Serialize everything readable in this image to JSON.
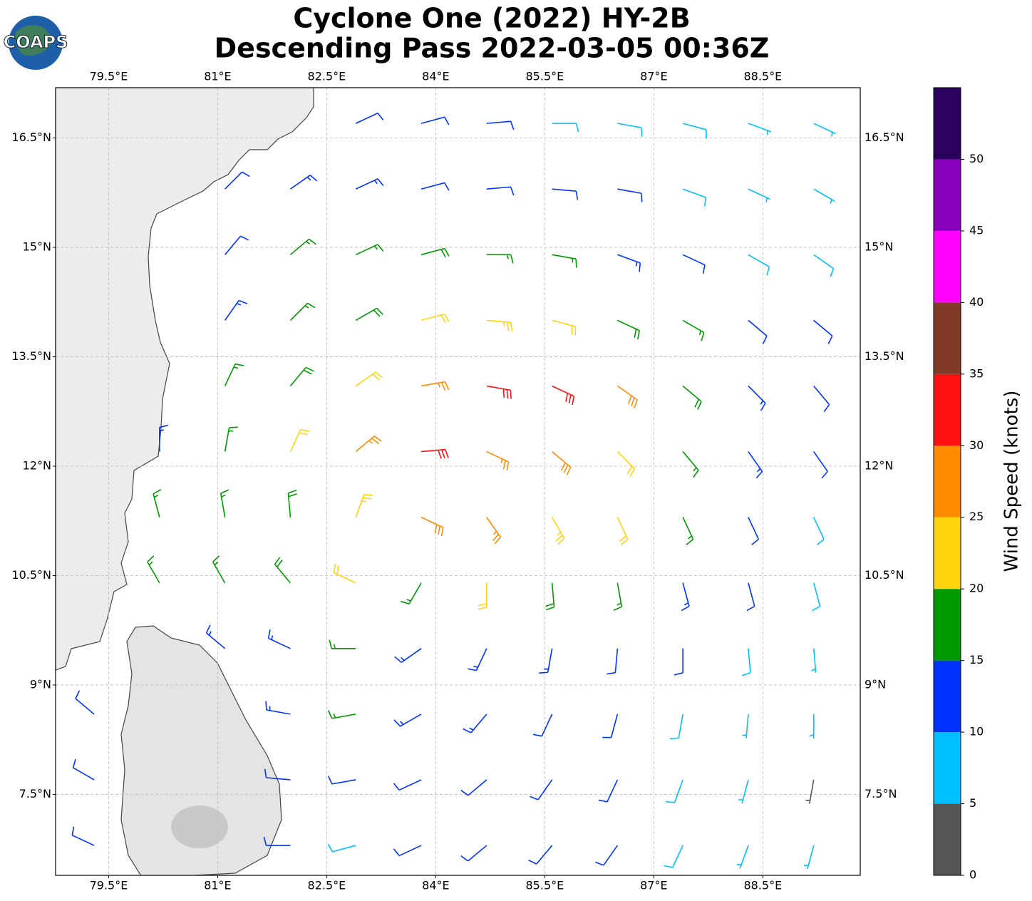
{
  "logo": "COAPS",
  "chart_data": {
    "type": "barbs",
    "title": "Cyclone One (2022) HY-2B",
    "subtitle": "Descending Pass 2022-03-05 00:36Z",
    "xlim": [
      78.77,
      89.84
    ],
    "ylim": [
      6.39,
      17.19
    ],
    "xticks": [
      {
        "value": 79.5,
        "label": "79.5°E"
      },
      {
        "value": 81,
        "label": "81°E"
      },
      {
        "value": 82.5,
        "label": "82.5°E"
      },
      {
        "value": 84,
        "label": "84°E"
      },
      {
        "value": 85.5,
        "label": "85.5°E"
      },
      {
        "value": 87,
        "label": "87°E"
      },
      {
        "value": 88.5,
        "label": "88.5°E"
      }
    ],
    "yticks": [
      {
        "value": 16.5,
        "label": "16.5°N"
      },
      {
        "value": 15,
        "label": "15°N"
      },
      {
        "value": 13.5,
        "label": "13.5°N"
      },
      {
        "value": 12,
        "label": "12°N"
      },
      {
        "value": 10.5,
        "label": "10.5°N"
      },
      {
        "value": 9,
        "label": "9°N"
      },
      {
        "value": 7.5,
        "label": "7.5°N"
      }
    ],
    "grid": true,
    "lons": [
      79.3,
      80.2,
      81.1,
      82.0,
      82.9,
      83.8,
      84.7,
      85.6,
      86.5,
      87.4,
      88.3,
      89.2
    ],
    "lats": [
      16.7,
      15.8,
      14.9,
      14.0,
      13.1,
      12.2,
      11.3,
      10.4,
      9.5,
      8.6,
      7.7,
      6.8
    ],
    "speed": [
      [
        null,
        null,
        null,
        null,
        12,
        12,
        12,
        8,
        8,
        8,
        7,
        7
      ],
      [
        null,
        null,
        11,
        13,
        13,
        12,
        12,
        12,
        11,
        8,
        7,
        7
      ],
      [
        null,
        null,
        12,
        15,
        17,
        19,
        17,
        16,
        14,
        12,
        9,
        8
      ],
      [
        null,
        null,
        13,
        16,
        19,
        22,
        23,
        22,
        19,
        15,
        12,
        10
      ],
      [
        null,
        null,
        16,
        18,
        22,
        26,
        30,
        31,
        28,
        18,
        14,
        12
      ],
      [
        null,
        13,
        17,
        20,
        26,
        31,
        27,
        28,
        22,
        17,
        13,
        11
      ],
      [
        null,
        16,
        17,
        19,
        24,
        28,
        27,
        23,
        20,
        16,
        12,
        9
      ],
      [
        null,
        15,
        16,
        18,
        21,
        17,
        22,
        18,
        15,
        13,
        11,
        8
      ],
      [
        null,
        null,
        13,
        14,
        15,
        14,
        14,
        13,
        12,
        11,
        9,
        7
      ],
      [
        12,
        null,
        null,
        13,
        15,
        14,
        13,
        12,
        11,
        9,
        7,
        5
      ],
      [
        12,
        null,
        null,
        12,
        12,
        12,
        12,
        11,
        10,
        8,
        7,
        4
      ],
      [
        12,
        null,
        null,
        11,
        9,
        11,
        12,
        11,
        10,
        8,
        7,
        6
      ]
    ],
    "direction": [
      [
        null,
        null,
        null,
        null,
        65,
        75,
        85,
        90,
        100,
        105,
        110,
        115
      ],
      [
        null,
        null,
        45,
        55,
        65,
        75,
        85,
        95,
        100,
        110,
        115,
        120
      ],
      [
        null,
        null,
        40,
        50,
        65,
        75,
        90,
        100,
        110,
        115,
        120,
        125
      ],
      [
        null,
        null,
        35,
        45,
        60,
        75,
        95,
        105,
        115,
        120,
        130,
        130
      ],
      [
        null,
        null,
        25,
        40,
        55,
        80,
        100,
        115,
        125,
        130,
        135,
        140
      ],
      [
        null,
        0,
        10,
        25,
        50,
        85,
        115,
        130,
        135,
        140,
        145,
        145
      ],
      [
        null,
        345,
        350,
        355,
        20,
        115,
        145,
        150,
        155,
        155,
        155,
        155
      ],
      [
        null,
        330,
        330,
        320,
        295,
        210,
        180,
        175,
        170,
        165,
        165,
        165
      ],
      [
        null,
        null,
        310,
        295,
        270,
        235,
        205,
        190,
        185,
        180,
        175,
        175
      ],
      [
        310,
        null,
        null,
        280,
        260,
        240,
        220,
        205,
        195,
        190,
        185,
        180
      ],
      [
        300,
        null,
        null,
        275,
        260,
        245,
        230,
        215,
        205,
        200,
        195,
        190
      ],
      [
        295,
        null,
        null,
        270,
        255,
        245,
        230,
        220,
        215,
        205,
        200,
        195
      ]
    ],
    "colorbar": {
      "label": "Wind Speed (knots)",
      "levels": [
        0,
        5,
        10,
        15,
        20,
        25,
        30,
        35,
        40,
        45,
        50,
        55
      ],
      "colors": [
        "#555555",
        "#00bfff",
        "#0033ff",
        "#009900",
        "#ffd40f",
        "#ff8c00",
        "#ff1010",
        "#803a25",
        "#ff00ff",
        "#8800bb",
        "#2b005e"
      ],
      "ticks": [
        0,
        5,
        10,
        15,
        20,
        25,
        30,
        35,
        40,
        45,
        50
      ]
    }
  }
}
